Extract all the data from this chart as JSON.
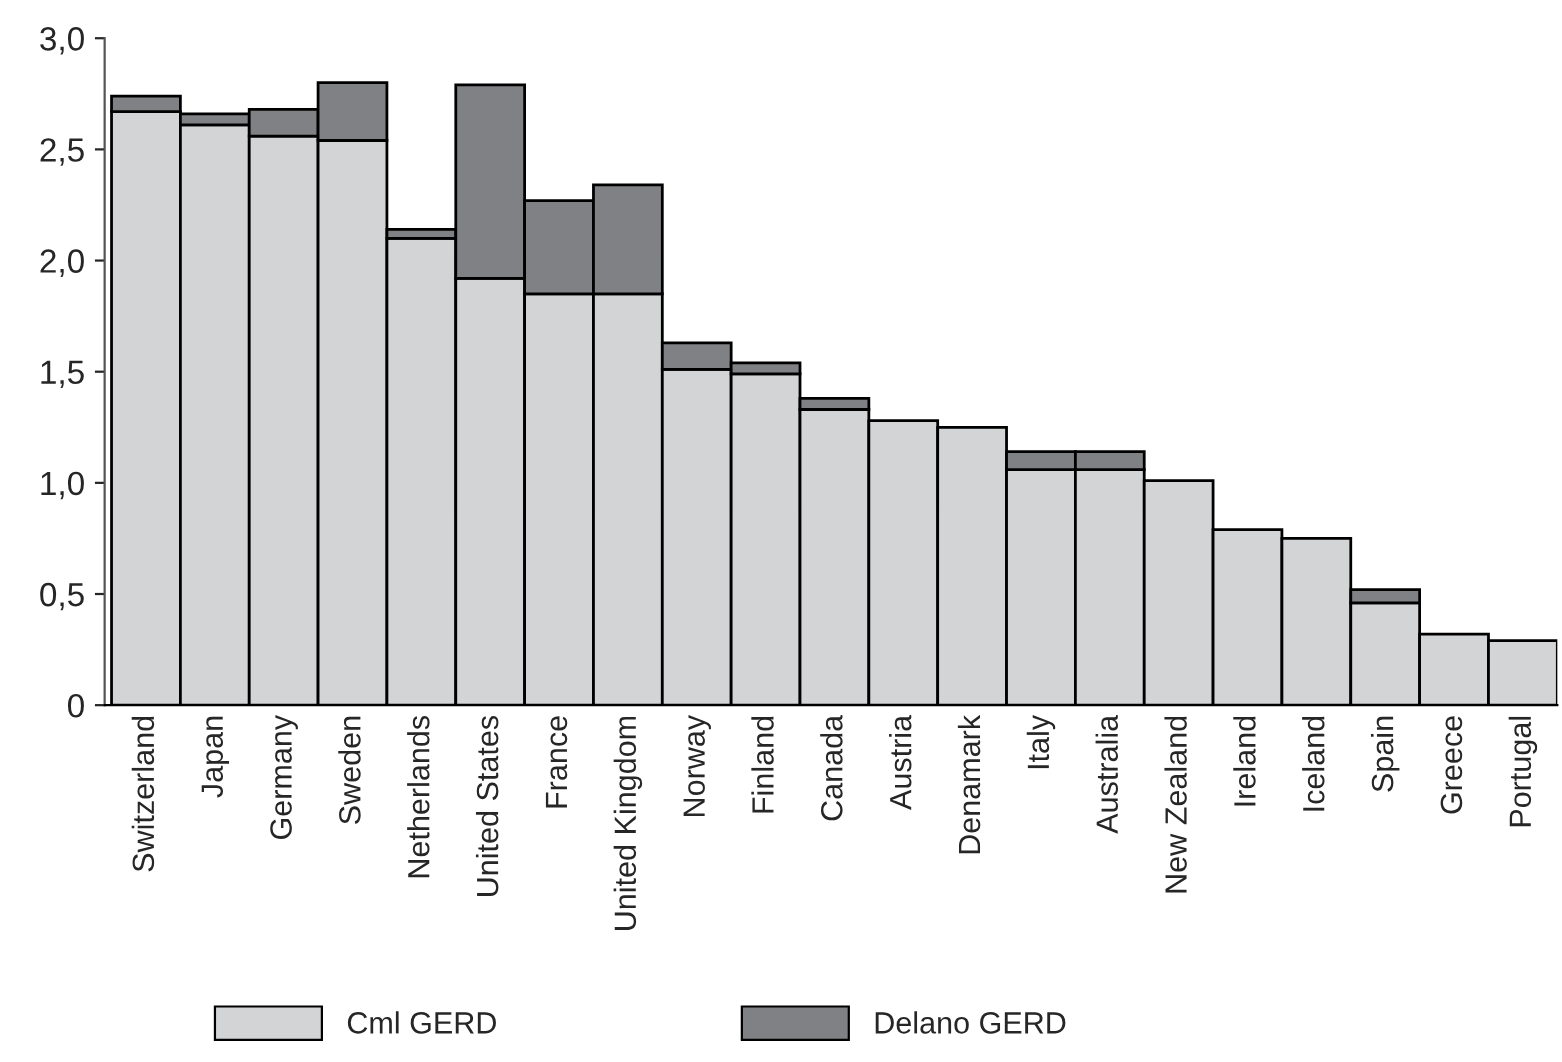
{
  "chart_data": {
    "type": "bar",
    "stacked": true,
    "categories": [
      "Switzerland",
      "Japan",
      "Germany",
      "Sweden",
      "Netherlands",
      "United States",
      "France",
      "United Kingdom",
      "Norway",
      "Finland",
      "Canada",
      "Austria",
      "Denamark",
      "Italy",
      "Australia",
      "New Zealand",
      "Ireland",
      "Iceland",
      "Spain",
      "Greece",
      "Portugal"
    ],
    "series": [
      {
        "name": "Cml GERD",
        "color": "#d3d4d6",
        "values": [
          2.67,
          2.61,
          2.56,
          2.54,
          2.1,
          1.92,
          1.85,
          1.85,
          1.51,
          1.49,
          1.33,
          1.28,
          1.25,
          1.06,
          1.06,
          1.01,
          0.79,
          0.75,
          0.46,
          0.32,
          0.29
        ]
      },
      {
        "name": "Delano GERD",
        "color": "#808184",
        "values": [
          0.07,
          0.05,
          0.12,
          0.26,
          0.04,
          0.87,
          0.42,
          0.49,
          0.12,
          0.05,
          0.05,
          null,
          null,
          0.08,
          0.08,
          null,
          null,
          null,
          0.06,
          null,
          null
        ]
      }
    ],
    "ylim": [
      0,
      3.0
    ],
    "yticks": [
      0,
      {
        "value": 0.5,
        "label": "0,5"
      },
      {
        "value": 1.0,
        "label": "1,0"
      },
      {
        "value": 1.5,
        "label": "1,5"
      },
      {
        "value": 2.0,
        "label": "2,0"
      },
      {
        "value": 2.5,
        "label": "2,5"
      },
      {
        "value": 3.0,
        "label": "3,0"
      }
    ],
    "grid": false,
    "legend": "bottom"
  }
}
